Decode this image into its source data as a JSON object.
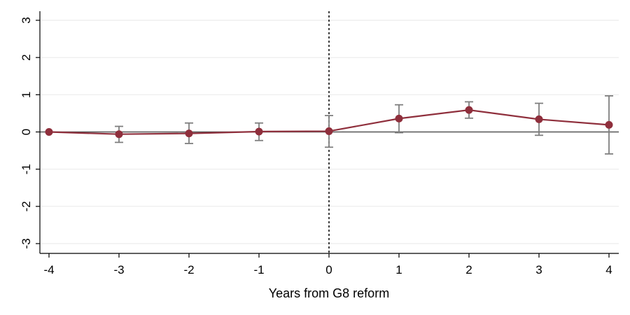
{
  "chart_data": {
    "type": "line",
    "title": "",
    "xlabel": "Years from G8 reform",
    "ylabel": "",
    "xlim": [
      -4,
      4
    ],
    "ylim": [
      -3,
      3
    ],
    "x_ticks": [
      "-4",
      "-3",
      "-2",
      "-1",
      "0",
      "1",
      "2",
      "3",
      "4"
    ],
    "y_ticks": [
      "-3",
      "-2",
      "-1",
      "0",
      "1",
      "2",
      "3"
    ],
    "grid": true,
    "reference_lines": {
      "horizontal_y": 0,
      "vertical_x": 0
    },
    "series": [
      {
        "x": [
          -4,
          -3,
          -2,
          -1,
          0,
          1,
          2,
          3,
          4
        ],
        "values": [
          0.0,
          -0.06,
          -0.04,
          0.01,
          0.02,
          0.36,
          0.59,
          0.34,
          0.19
        ],
        "ci_low": [
          0.0,
          -0.28,
          -0.31,
          -0.23,
          -0.41,
          -0.02,
          0.37,
          -0.09,
          -0.59
        ],
        "ci_high": [
          0.0,
          0.15,
          0.24,
          0.24,
          0.44,
          0.73,
          0.81,
          0.77,
          0.97
        ]
      }
    ],
    "colors": {
      "series": "#8f2f3c",
      "error_bars": "#7f7f7f",
      "zero_line": "#555555",
      "grid": "#ececec",
      "axis": "#000000"
    }
  }
}
